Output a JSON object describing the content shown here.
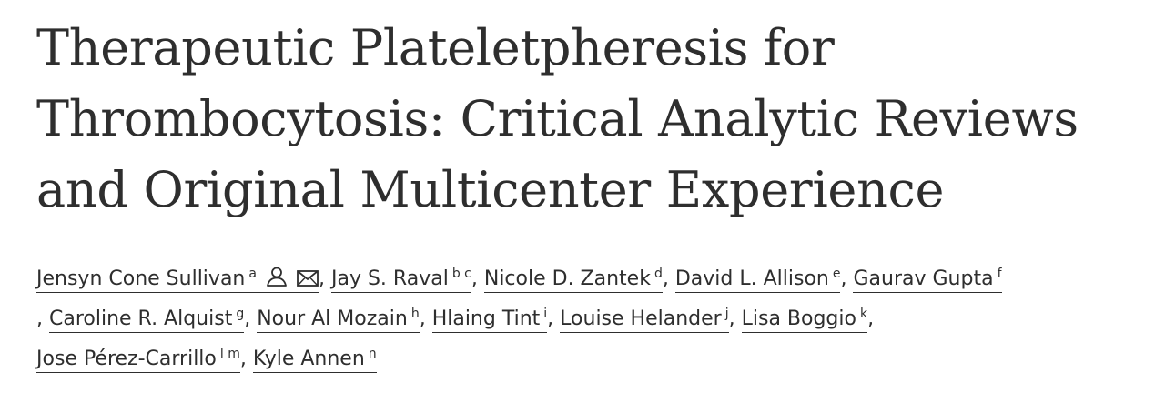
{
  "title": {
    "line1": "Therapeutic Plateletpheresis for",
    "line2": "Thrombocytosis: Critical Analytic Reviews",
    "line3": "and Original Multicenter Experience"
  },
  "authors": [
    {
      "name": "Jensyn Cone Sullivan",
      "aff": "a"
    },
    {
      "name": "Jay S. Raval",
      "aff": "b c"
    },
    {
      "name": "Nicole D. Zantek",
      "aff": "d"
    },
    {
      "name": "David L. Allison",
      "aff": "e"
    },
    {
      "name": "Gaurav Gupta",
      "aff": "f"
    },
    {
      "name": "Caroline R. Alquist",
      "aff": "g"
    },
    {
      "name": "Nour Al Mozain",
      "aff": "h"
    },
    {
      "name": "Hlaing Tint",
      "aff": "i"
    },
    {
      "name": "Louise Helander",
      "aff": "j"
    },
    {
      "name": "Lisa Boggio",
      "aff": "k"
    },
    {
      "name": "Jose Pérez-Carrillo",
      "aff": "l m"
    },
    {
      "name": "Kyle Annen",
      "aff": "n"
    }
  ],
  "separator": ", ",
  "icons": {
    "author_profile": "person-icon",
    "email": "envelope-icon"
  }
}
